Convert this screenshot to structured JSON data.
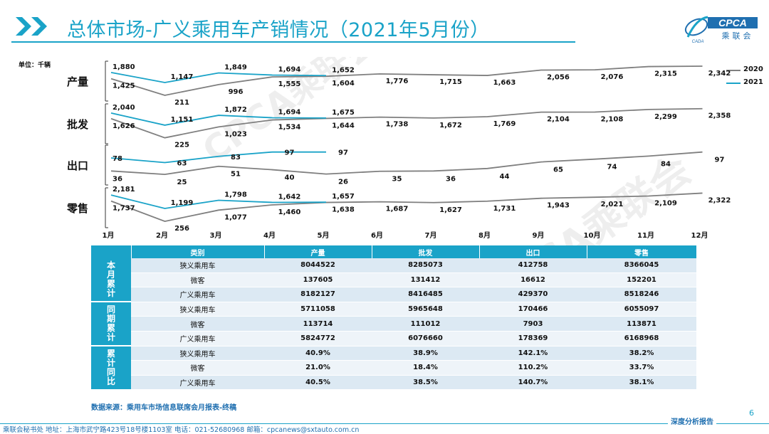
{
  "page": {
    "title": "总体市场-广义乘用车产销情况（2021年5月份）",
    "unit_label": "单位：千辆",
    "logo": {
      "main": "CPCA",
      "sub": "乘联会",
      "small": "CADA"
    },
    "source_note": "数据来源：乘用车市场信息联席会月报表-终稿",
    "page_number": "6",
    "footer_text": "乘联会秘书处   地址：上海市武宁路423号18号楼1103室   电话：021-52680968   邮箱：cpcanews@sxtauto.com.cn",
    "footer_brand": "深度分析报告",
    "watermark": "CPCA乘联会"
  },
  "colors": {
    "accent": "#1aa3c8",
    "series_2020": "#7f7f7f",
    "series_2021": "#1aa3c8",
    "table_header": "#1aa3c8",
    "table_row_light": "#eef4f9",
    "table_row_dark": "#dce9f3"
  },
  "chart_data": {
    "type": "line",
    "title": "",
    "x": [
      "1月",
      "2月",
      "3月",
      "4月",
      "5月",
      "6月",
      "7月",
      "8月",
      "9月",
      "10月",
      "11月",
      "12月"
    ],
    "legend": [
      "2020",
      "2021"
    ],
    "legend_position": "top-right",
    "panels": [
      {
        "label": "产量",
        "series": [
          {
            "name": "2020",
            "values": [
              1425,
              211,
              996,
              1555,
              1604,
              1776,
              1715,
              1663,
              2056,
              2076,
              2315,
              2342
            ]
          },
          {
            "name": "2021",
            "values": [
              1880,
              1147,
              1849,
              1694,
              1652
            ]
          }
        ]
      },
      {
        "label": "批发",
        "series": [
          {
            "name": "2020",
            "values": [
              1626,
              225,
              1023,
              1534,
              1644,
              1738,
              1672,
              1769,
              2104,
              2108,
              2299,
              2358
            ]
          },
          {
            "name": "2021",
            "values": [
              2040,
              1151,
              1872,
              1694,
              1675
            ]
          }
        ]
      },
      {
        "label": "出口",
        "series": [
          {
            "name": "2020",
            "values": [
              36,
              25,
              51,
              40,
              26,
              35,
              36,
              44,
              65,
              74,
              84,
              97
            ]
          },
          {
            "name": "2021",
            "values": [
              78,
              63,
              83,
              97,
              97
            ]
          }
        ]
      },
      {
        "label": "零售",
        "series": [
          {
            "name": "2020",
            "values": [
              1737,
              256,
              1077,
              1460,
              1638,
              1687,
              1627,
              1731,
              1943,
              2021,
              2109,
              2322
            ]
          },
          {
            "name": "2021",
            "values": [
              2181,
              1199,
              1798,
              1642,
              1657
            ]
          }
        ]
      }
    ]
  },
  "table": {
    "headers": [
      "类别",
      "产量",
      "批发",
      "出口",
      "零售"
    ],
    "groups": [
      {
        "label": [
          "本",
          "月",
          "累",
          "计"
        ],
        "rows": [
          {
            "cat": "狭义乘用车",
            "vals": [
              "8044522",
              "8285073",
              "412758",
              "8366045"
            ]
          },
          {
            "cat": "微客",
            "vals": [
              "137605",
              "131412",
              "16612",
              "152201"
            ]
          },
          {
            "cat": "广义乘用车",
            "vals": [
              "8182127",
              "8416485",
              "429370",
              "8518246"
            ]
          }
        ]
      },
      {
        "label": [
          "同",
          "期",
          "累",
          "计"
        ],
        "rows": [
          {
            "cat": "狭义乘用车",
            "vals": [
              "5711058",
              "5965648",
              "170466",
              "6055097"
            ]
          },
          {
            "cat": "微客",
            "vals": [
              "113714",
              "111012",
              "7903",
              "113871"
            ]
          },
          {
            "cat": "广义乘用车",
            "vals": [
              "5824772",
              "6076660",
              "178369",
              "6168968"
            ]
          }
        ]
      },
      {
        "label": [
          "累",
          "计",
          "同",
          "比"
        ],
        "rows": [
          {
            "cat": "狭义乘用车",
            "vals": [
              "40.9%",
              "38.9%",
              "142.1%",
              "38.2%"
            ]
          },
          {
            "cat": "微客",
            "vals": [
              "21.0%",
              "18.4%",
              "110.2%",
              "33.7%"
            ]
          },
          {
            "cat": "广义乘用车",
            "vals": [
              "40.5%",
              "38.5%",
              "140.7%",
              "38.1%"
            ]
          }
        ]
      }
    ]
  }
}
